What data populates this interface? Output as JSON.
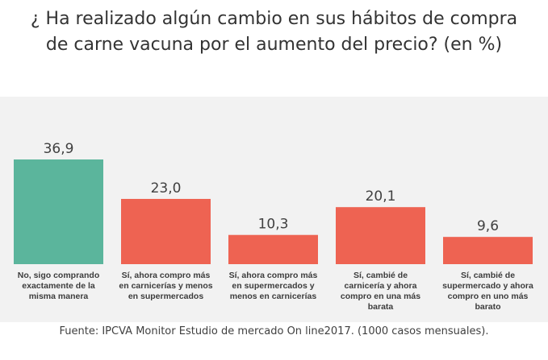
{
  "title": {
    "line1": "¿ Ha realizado algún cambio en sus hábitos de compra",
    "line2": "de carne vacuna por el aumento del precio? (en %)"
  },
  "source": "Fuente: IPCVA Monitor Estudio de mercado On line2017. (1000 casos mensuales).",
  "colors": {
    "first": "#5bb59c",
    "rest": "#ee6352",
    "background": "#f2f2f2"
  },
  "chart_data": {
    "type": "bar",
    "categories": [
      [
        "No, sigo comprando",
        "exactamente de la",
        "misma manera"
      ],
      [
        "Sí, ahora compro más",
        "en carnicerías y menos",
        "en supermercados"
      ],
      [
        "Sí, ahora compro más",
        "en supermercados y",
        "menos en carnicerías"
      ],
      [
        "Sí, cambié de",
        "carnicería y ahora",
        "compro en una más",
        "barata"
      ],
      [
        "Sí, cambié de",
        "supermercado y ahora",
        "compro en uno más",
        "barato"
      ]
    ],
    "values": [
      36.9,
      23.0,
      10.3,
      20.1,
      9.6
    ],
    "value_labels": [
      "36,9",
      "23,0",
      "10,3",
      "20,1",
      "9,6"
    ],
    "ylim": [
      0,
      36.9
    ]
  }
}
